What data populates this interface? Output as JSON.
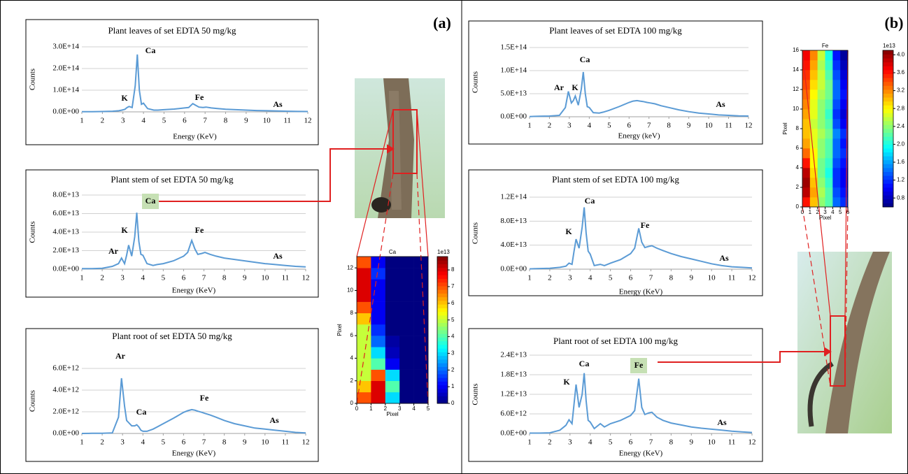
{
  "panels": [
    "(a)",
    "(b)"
  ],
  "chart_data": [
    {
      "type": "line",
      "title": "Plant leaves of set EDTA 50 mg/kg",
      "xlabel": "Energy (KeV)",
      "ylabel": "Counts",
      "color": "#5b9bd5",
      "grid": true,
      "x": [
        1,
        1.5,
        2,
        2.5,
        2.8,
        2.95,
        3.1,
        3.2,
        3.3,
        3.45,
        3.6,
        3.7,
        3.8,
        3.9,
        4,
        4.2,
        4.5,
        4.7,
        5,
        5.5,
        6,
        6.2,
        6.4,
        6.55,
        6.7,
        6.9,
        7.05,
        7.3,
        7.6,
        8,
        8.5,
        9,
        9.5,
        10,
        10.5,
        11,
        11.5,
        12
      ],
      "values": [
        1000000000000.0,
        1000000000000.0,
        1500000000000.0,
        3000000000000.0,
        5000000000000.0,
        8000000000000.0,
        12000000000000.0,
        20000000000000.0,
        25000000000000.0,
        20000000000000.0,
        120000000000000.0,
        265000000000000.0,
        100000000000000.0,
        35000000000000.0,
        40000000000000.0,
        15000000000000.0,
        8000000000000.0,
        8000000000000.0,
        10000000000000.0,
        13000000000000.0,
        18000000000000.0,
        20000000000000.0,
        38000000000000.0,
        30000000000000.0,
        22000000000000.0,
        20000000000000.0,
        22000000000000.0,
        18000000000000.0,
        15000000000000.0,
        12000000000000.0,
        10000000000000.0,
        8000000000000.0,
        6000000000000.0,
        5000000000000.0,
        4000000000000.0,
        3000000000000.0,
        2000000000000.0,
        1500000000000.0
      ],
      "xlim": [
        1,
        12
      ],
      "xticks": [
        1,
        2,
        3,
        4,
        5,
        6,
        7,
        8,
        9,
        10,
        11,
        12
      ],
      "ylim": [
        0,
        300000000000000.0
      ],
      "yticks": [
        {
          "value": 0,
          "label": "0.0E+00"
        },
        {
          "value": 100000000000000.0,
          "label": "1.0E+14"
        },
        {
          "value": 200000000000000.0,
          "label": "2.0E+14"
        },
        {
          "value": 300000000000000.0,
          "label": "3.0E+14"
        }
      ],
      "annotations": [
        "K",
        "Ca",
        "Fe",
        "As"
      ]
    },
    {
      "type": "line",
      "title": "Plant stem of set EDTA 50 mg/kg",
      "xlabel": "Energy (KeV)",
      "ylabel": "Counts",
      "color": "#5b9bd5",
      "grid": true,
      "x": [
        1,
        1.5,
        2,
        2.5,
        2.8,
        2.95,
        3.1,
        3.2,
        3.3,
        3.45,
        3.6,
        3.7,
        3.8,
        3.9,
        4,
        4.2,
        4.5,
        4.7,
        5,
        5.5,
        6,
        6.2,
        6.4,
        6.55,
        6.7,
        6.9,
        7.05,
        7.3,
        7.6,
        8,
        8.5,
        9,
        9.5,
        10,
        10.5,
        11,
        11.5,
        12
      ],
      "values": [
        500000000000.0,
        500000000000.0,
        1000000000000.0,
        3000000000000.0,
        6000000000000.0,
        12000000000000.0,
        6000000000000.0,
        15000000000000.0,
        26000000000000.0,
        14000000000000.0,
        35000000000000.0,
        61000000000000.0,
        30000000000000.0,
        16000000000000.0,
        15000000000000.0,
        6000000000000.0,
        4000000000000.0,
        5000000000000.0,
        6000000000000.0,
        9000000000000.0,
        14000000000000.0,
        18000000000000.0,
        31000000000000.0,
        22000000000000.0,
        16000000000000.0,
        17000000000000.0,
        18000000000000.0,
        16000000000000.0,
        14000000000000.0,
        12000000000000.0,
        10500000000000.0,
        9000000000000.0,
        7500000000000.0,
        6000000000000.0,
        5000000000000.0,
        4000000000000.0,
        3000000000000.0,
        2500000000000.0
      ],
      "xlim": [
        1,
        12
      ],
      "xticks": [
        1,
        2,
        3,
        4,
        5,
        6,
        7,
        8,
        9,
        10,
        11,
        12
      ],
      "ylim": [
        0,
        80000000000000.0
      ],
      "yticks": [
        {
          "value": 0,
          "label": "0.0E+00"
        },
        {
          "value": 20000000000000.0,
          "label": "2.0E+13"
        },
        {
          "value": 40000000000000.0,
          "label": "4.0E+13"
        },
        {
          "value": 60000000000000.0,
          "label": "6.0E+13"
        },
        {
          "value": 80000000000000.0,
          "label": "8.0E+13"
        }
      ],
      "annotations": [
        "Ar",
        "K",
        "Ca",
        "Fe",
        "As"
      ]
    },
    {
      "type": "line",
      "title": "Plant root of set EDTA 50 mg/kg",
      "xlabel": "Energy (KeV)",
      "ylabel": "Counts",
      "color": "#5b9bd5",
      "grid": true,
      "x": [
        1,
        1.5,
        2,
        2.5,
        2.8,
        2.95,
        3.1,
        3.2,
        3.3,
        3.45,
        3.6,
        3.7,
        3.8,
        3.9,
        4,
        4.2,
        4.5,
        4.7,
        5,
        5.5,
        6,
        6.2,
        6.4,
        6.55,
        6.7,
        6.9,
        7.05,
        7.3,
        7.6,
        8,
        8.5,
        9,
        9.5,
        10,
        10.5,
        11,
        11.5,
        12
      ],
      "values": [
        0,
        10000000000.0,
        20000000000.0,
        50000000000.0,
        1500000000000.0,
        5100000000000.0,
        2500000000000.0,
        1200000000000.0,
        1000000000000.0,
        700000000000.0,
        700000000000.0,
        800000000000.0,
        600000000000.0,
        300000000000.0,
        200000000000.0,
        200000000000.0,
        400000000000.0,
        600000000000.0,
        900000000000.0,
        1400000000000.0,
        1950000000000.0,
        2100000000000.0,
        2200000000000.0,
        2150000000000.0,
        2050000000000.0,
        1950000000000.0,
        1850000000000.0,
        1700000000000.0,
        1500000000000.0,
        1200000000000.0,
        900000000000.0,
        700000000000.0,
        500000000000.0,
        400000000000.0,
        300000000000.0,
        200000000000.0,
        100000000000.0,
        50000000000.0
      ],
      "xlim": [
        1,
        12
      ],
      "xticks": [
        1,
        2,
        3,
        4,
        5,
        6,
        7,
        8,
        9,
        10,
        11,
        12
      ],
      "ylim": [
        0,
        6000000000000.0
      ],
      "yticks": [
        {
          "value": 0,
          "label": "0.0E+00"
        },
        {
          "value": 2000000000000.0,
          "label": "2.0E+12"
        },
        {
          "value": 4000000000000.0,
          "label": "4.0E+12"
        },
        {
          "value": 6000000000000.0,
          "label": "6.0E+12"
        }
      ],
      "annotations": [
        "Ar",
        "Ca",
        "Fe",
        "As"
      ]
    },
    {
      "type": "line",
      "title": "Plant leaves of set EDTA 100 mg/kg",
      "xlabel": "Energy (keV)",
      "ylabel": "Counts",
      "color": "#5b9bd5",
      "grid": true,
      "x": [
        1,
        1.5,
        2,
        2.5,
        2.8,
        2.95,
        3.1,
        3.2,
        3.3,
        3.45,
        3.6,
        3.7,
        3.8,
        3.9,
        4,
        4.2,
        4.5,
        4.7,
        5,
        5.5,
        6,
        6.2,
        6.4,
        6.55,
        6.7,
        6.9,
        7.05,
        7.3,
        7.6,
        8,
        8.5,
        9,
        9.5,
        10,
        10.5,
        11,
        11.5,
        12
      ],
      "values": [
        500000000000.0,
        1000000000000.0,
        1500000000000.0,
        3000000000000.0,
        20000000000000.0,
        55000000000000.0,
        30000000000000.0,
        35000000000000.0,
        45000000000000.0,
        25000000000000.0,
        60000000000000.0,
        97000000000000.0,
        50000000000000.0,
        22000000000000.0,
        20000000000000.0,
        9000000000000.0,
        8000000000000.0,
        10000000000000.0,
        14000000000000.0,
        22000000000000.0,
        31000000000000.0,
        34000000000000.0,
        35000000000000.0,
        34000000000000.0,
        33000000000000.0,
        31000000000000.0,
        30000000000000.0,
        28000000000000.0,
        24000000000000.0,
        20000000000000.0,
        15000000000000.0,
        11000000000000.0,
        8000000000000.0,
        6000000000000.0,
        4000000000000.0,
        3000000000000.0,
        2000000000000.0,
        1500000000000.0
      ],
      "xlim": [
        1,
        12
      ],
      "xticks": [
        1,
        2,
        3,
        4,
        5,
        6,
        7,
        8,
        9,
        10,
        11,
        12
      ],
      "ylim": [
        0,
        150000000000000.0
      ],
      "yticks": [
        {
          "value": 0,
          "label": "0.0E+00"
        },
        {
          "value": 50000000000000.0,
          "label": "5.0E+13"
        },
        {
          "value": 100000000000000.0,
          "label": "1.0E+14"
        },
        {
          "value": 150000000000000.0,
          "label": "1.5E+14"
        }
      ],
      "annotations": [
        "Ar",
        "K",
        "Ca",
        "As"
      ]
    },
    {
      "type": "line",
      "title": "Plant stem of set EDTA 100 mg/kg",
      "xlabel": "Energy (KeV)",
      "ylabel": "Counts",
      "color": "#5b9bd5",
      "grid": true,
      "x": [
        1,
        1.5,
        2,
        2.5,
        2.8,
        2.95,
        3.1,
        3.2,
        3.3,
        3.45,
        3.6,
        3.7,
        3.8,
        3.9,
        4,
        4.2,
        4.5,
        4.7,
        5,
        5.5,
        6,
        6.2,
        6.4,
        6.55,
        6.7,
        6.9,
        7.05,
        7.3,
        7.6,
        8,
        8.5,
        9,
        9.5,
        10,
        10.5,
        11,
        11.5,
        12
      ],
      "values": [
        500000000000.0,
        1000000000000.0,
        1500000000000.0,
        3000000000000.0,
        5000000000000.0,
        10000000000000.0,
        8000000000000.0,
        30000000000000.0,
        50000000000000.0,
        35000000000000.0,
        70000000000000.0,
        103000000000000.0,
        60000000000000.0,
        30000000000000.0,
        25000000000000.0,
        6000000000000.0,
        8000000000000.0,
        6000000000000.0,
        10000000000000.0,
        16000000000000.0,
        26000000000000.0,
        35000000000000.0,
        68000000000000.0,
        45000000000000.0,
        36000000000000.0,
        38000000000000.0,
        39000000000000.0,
        35000000000000.0,
        31000000000000.0,
        26000000000000.0,
        21000000000000.0,
        17000000000000.0,
        13000000000000.0,
        9000000000000.0,
        6000000000000.0,
        4000000000000.0,
        3000000000000.0,
        2000000000000.0
      ],
      "xlim": [
        1,
        12
      ],
      "xticks": [
        1,
        2,
        3,
        4,
        5,
        6,
        7,
        8,
        9,
        10,
        11,
        12
      ],
      "ylim": [
        0,
        120000000000000.0
      ],
      "yticks": [
        {
          "value": 0,
          "label": "0.0E+00"
        },
        {
          "value": 40000000000000.0,
          "label": "4.0E+13"
        },
        {
          "value": 80000000000000.0,
          "label": "8.0E+13"
        },
        {
          "value": 120000000000000.0,
          "label": "1.2E+14"
        }
      ],
      "annotations": [
        "K",
        "Ca",
        "Fe",
        "As"
      ]
    },
    {
      "type": "line",
      "title": "Plant root of set EDTA 100 mg/kg",
      "xlabel": "Energy (KeV)",
      "ylabel": "Counts",
      "color": "#5b9bd5",
      "grid": true,
      "x": [
        1,
        1.5,
        2,
        2.5,
        2.8,
        2.95,
        3.1,
        3.2,
        3.3,
        3.45,
        3.6,
        3.7,
        3.8,
        3.9,
        4,
        4.2,
        4.5,
        4.7,
        5,
        5.5,
        6,
        6.2,
        6.4,
        6.55,
        6.7,
        6.9,
        7.05,
        7.3,
        7.6,
        8,
        8.5,
        9,
        9.5,
        10,
        10.5,
        11,
        11.5,
        12
      ],
      "values": [
        100000000000.0,
        100000000000.0,
        200000000000.0,
        1000000000000.0,
        2500000000000.0,
        4200000000000.0,
        3000000000000.0,
        9000000000000.0,
        15000000000000.0,
        8000000000000.0,
        12000000000000.0,
        18500000000000.0,
        10000000000000.0,
        4000000000000.0,
        3500000000000.0,
        1500000000000.0,
        3000000000000.0,
        2000000000000.0,
        3000000000000.0,
        4000000000000.0,
        5500000000000.0,
        7000000000000.0,
        16800000000000.0,
        8000000000000.0,
        5800000000000.0,
        6300000000000.0,
        6500000000000.0,
        5000000000000.0,
        4000000000000.0,
        3200000000000.0,
        2600000000000.0,
        2000000000000.0,
        1600000000000.0,
        1300000000000.0,
        1000000000000.0,
        700000000000.0,
        500000000000.0,
        300000000000.0
      ],
      "xlim": [
        1,
        12
      ],
      "xticks": [
        1,
        2,
        3,
        4,
        5,
        6,
        7,
        8,
        9,
        10,
        11,
        12
      ],
      "ylim": [
        0,
        24000000000000.0
      ],
      "yticks": [
        {
          "value": 0,
          "label": "0.0E+00"
        },
        {
          "value": 6000000000000.0,
          "label": "6.0E+12"
        },
        {
          "value": 12000000000000.0,
          "label": "1.2E+13"
        },
        {
          "value": 18000000000000.0,
          "label": "1.8E+13"
        },
        {
          "value": 24000000000000.0,
          "label": "2.4E+13"
        }
      ],
      "annotations": [
        "K",
        "Ca",
        "Fe",
        "As"
      ]
    },
    {
      "type": "heatmap",
      "title": "Ca",
      "xlabel": "Pixel",
      "ylabel": "Pixel",
      "colorbar_label": "1e13",
      "xlim": [
        0,
        5
      ],
      "xticks": [
        0,
        1,
        2,
        3,
        4,
        5
      ],
      "ylim": [
        0,
        13
      ],
      "yticks": [
        0,
        2,
        4,
        6,
        8,
        10,
        12
      ],
      "zlim": [
        0,
        8.8
      ],
      "zticks": [
        0,
        1,
        2,
        3,
        4,
        5,
        6,
        7,
        8
      ],
      "values": [
        [
          7,
          8,
          3,
          0,
          0
        ],
        [
          6,
          8,
          4,
          0,
          0
        ],
        [
          5,
          7,
          3,
          0,
          0
        ],
        [
          5,
          4,
          1,
          0,
          0
        ],
        [
          5,
          3,
          0.5,
          0,
          0
        ],
        [
          5,
          2,
          0.3,
          0,
          0
        ],
        [
          5,
          1.5,
          0,
          0,
          0
        ],
        [
          6,
          1,
          0,
          0,
          0
        ],
        [
          7,
          1,
          0,
          0,
          0
        ],
        [
          8,
          1,
          0,
          0,
          0
        ],
        [
          8,
          1,
          0,
          0,
          0
        ],
        [
          8,
          1.5,
          0,
          0,
          0
        ],
        [
          7,
          1,
          0,
          0,
          0
        ]
      ]
    },
    {
      "type": "heatmap",
      "title": "Fe",
      "xlabel": "Pixel",
      "ylabel": "Pixel",
      "colorbar_label": "1e13",
      "xlim": [
        0,
        6
      ],
      "xticks": [
        0,
        1,
        2,
        3,
        4,
        5,
        6
      ],
      "ylim": [
        0,
        16
      ],
      "yticks": [
        0,
        2,
        4,
        6,
        8,
        10,
        12,
        14,
        16
      ],
      "zlim": [
        0.6,
        4.1
      ],
      "zticks": [
        0.8,
        1.2,
        1.6,
        {
          "value": 2,
          "label": "2.0"
        },
        2.4,
        2.8,
        3.2,
        3.6,
        {
          "value": 4,
          "label": "4.0"
        }
      ],
      "values": [
        [
          3.6,
          3.0,
          2.4,
          2.2,
          1.4,
          1.2
        ],
        [
          3.9,
          3.1,
          2.5,
          2.2,
          1.3,
          1.1
        ],
        [
          4.0,
          3.0,
          2.4,
          2.1,
          1.2,
          1.0
        ],
        [
          3.9,
          2.9,
          2.3,
          2.0,
          1.2,
          1.0
        ],
        [
          3.6,
          2.8,
          2.3,
          2.1,
          1.3,
          1.1
        ],
        [
          3.3,
          2.8,
          2.4,
          2.2,
          1.4,
          1.2
        ],
        [
          3.1,
          2.7,
          2.4,
          2.2,
          1.4,
          1.1
        ],
        [
          3.0,
          2.7,
          2.5,
          2.3,
          1.5,
          1.2
        ],
        [
          3.0,
          2.6,
          2.4,
          2.2,
          1.3,
          1.0
        ],
        [
          3.1,
          2.7,
          2.4,
          2.1,
          1.2,
          0.9
        ],
        [
          3.2,
          2.7,
          2.4,
          2.2,
          1.3,
          1.0
        ],
        [
          3.3,
          2.8,
          2.5,
          2.3,
          1.4,
          1.1
        ],
        [
          3.4,
          2.9,
          2.6,
          2.3,
          1.4,
          1.0
        ],
        [
          3.5,
          3.0,
          2.6,
          2.2,
          1.3,
          0.9
        ],
        [
          3.6,
          3.1,
          2.5,
          2.1,
          1.2,
          0.8
        ],
        [
          3.7,
          3.2,
          2.6,
          2.0,
          1.1,
          0.7
        ]
      ]
    }
  ]
}
